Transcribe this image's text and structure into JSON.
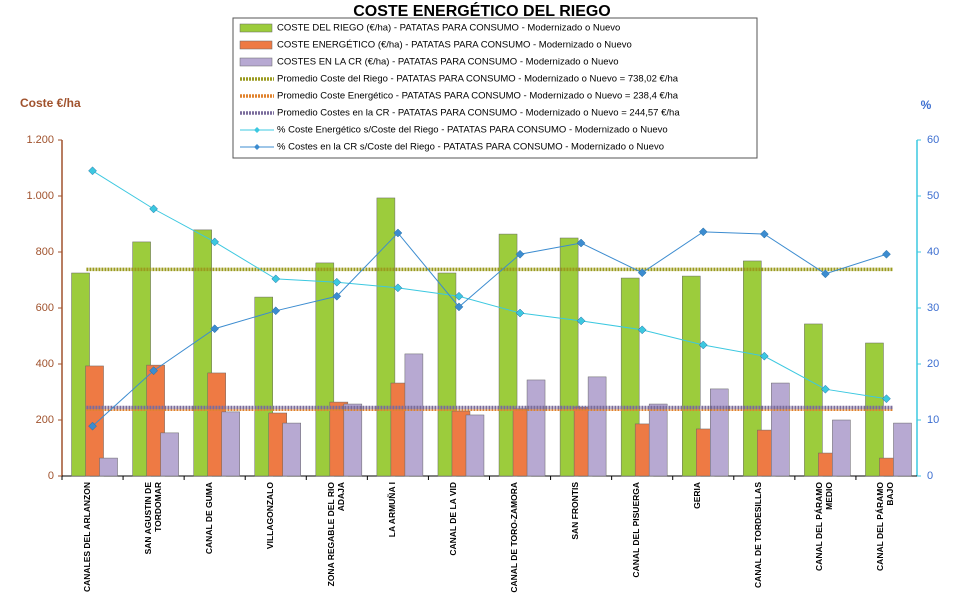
{
  "chart_data": {
    "type": "bar_line_combo",
    "title": "COSTE ENERGÉTICO DEL RIEGO",
    "y_label": "Coste €/ha",
    "y2_label": "%",
    "categories": [
      "CANALES DEL ARLANZON",
      "SAN AGUSTIN DE TORDOMAR",
      "CANAL DE GUMA",
      "VILLAGONZALO",
      "ZONA REGABLE DEL RIO ADAJA",
      "LA ARMUÑA I",
      "CANAL DE LA VID",
      "CANAL DE TORO-ZAMORA",
      "SAN FRONTIS",
      "CANAL DEL PISUERGA",
      "GERIA",
      "CANAL DE TORDESILLAS",
      "CANAL DEL PÁRAMO MEDIO",
      "CANAL DEL PÁRAMO BAJO"
    ],
    "ylim": [
      0,
      1200
    ],
    "yticks": [
      0,
      200,
      400,
      600,
      800,
      {
        "value": 1000,
        "label": "1.000"
      },
      {
        "value": 1200,
        "label": "1.200"
      }
    ],
    "y2lim": [
      0,
      60
    ],
    "y2ticks": [
      0,
      10,
      20,
      30,
      40,
      50,
      60
    ],
    "series": [
      {
        "name": "COSTE DEL RIEGO (€/ha) - PATATAS PARA CONSUMO - Modernizado o Nuevo",
        "type": "bar",
        "color": "#9ccc3c",
        "values": [
          725,
          836,
          879,
          639,
          761,
          993,
          725,
          864,
          850,
          707,
          714,
          768,
          543,
          475
        ]
      },
      {
        "name": "COSTE ENERGÉTICO (€/ha) - PATATAS PARA CONSUMO - Modernizado o Nuevo",
        "type": "bar",
        "color": "#ee7a44",
        "values": [
          393,
          396,
          368,
          225,
          264,
          332,
          232,
          240,
          246,
          186,
          168,
          164,
          82,
          64
        ]
      },
      {
        "name": "COSTES EN LA CR (€/ha) - PATATAS PARA CONSUMO - Modernizado o Nuevo",
        "type": "bar",
        "color": "#b7a9d2",
        "values": [
          64,
          154,
          229,
          189,
          257,
          436,
          218,
          343,
          354,
          257,
          311,
          332,
          200,
          189
        ]
      },
      {
        "name": "Promedio Coste del Riego - PATATAS PARA CONSUMO - Modernizado o Nuevo = 738,02 €/ha",
        "type": "hline",
        "color": "#9a9a1e",
        "value": 738.02
      },
      {
        "name": "Promedio Coste Energético - PATATAS PARA CONSUMO - Modernizado o Nuevo = 238,4 €/ha",
        "type": "hline",
        "color": "#e0822c",
        "value": 238.4
      },
      {
        "name": "Promedio Costes en la CR - PATATAS PARA CONSUMO - Modernizado o Nuevo = 244,57 €/ha",
        "type": "hline",
        "color": "#7a6c9c",
        "value": 244.57
      },
      {
        "name": "% Coste Energético s/Coste del Riego - PATATAS PARA CONSUMO - Modernizado o Nuevo",
        "type": "line",
        "axis": "y2",
        "color": "#3cc8e0",
        "values": [
          54.5,
          47.7,
          41.8,
          35.2,
          34.6,
          33.6,
          32.1,
          29.1,
          27.7,
          26.1,
          23.4,
          21.4,
          15.5,
          13.8
        ]
      },
      {
        "name": "% Costes en la CR s/Coste del Riego - PATATAS PARA CONSUMO - Modernizado o Nuevo",
        "type": "line",
        "axis": "y2",
        "color": "#3c8cd0",
        "values": [
          8.9,
          18.8,
          26.3,
          29.5,
          32.1,
          43.4,
          30.2,
          39.6,
          41.6,
          36.3,
          43.6,
          43.2,
          36.1,
          39.6
        ]
      }
    ]
  }
}
